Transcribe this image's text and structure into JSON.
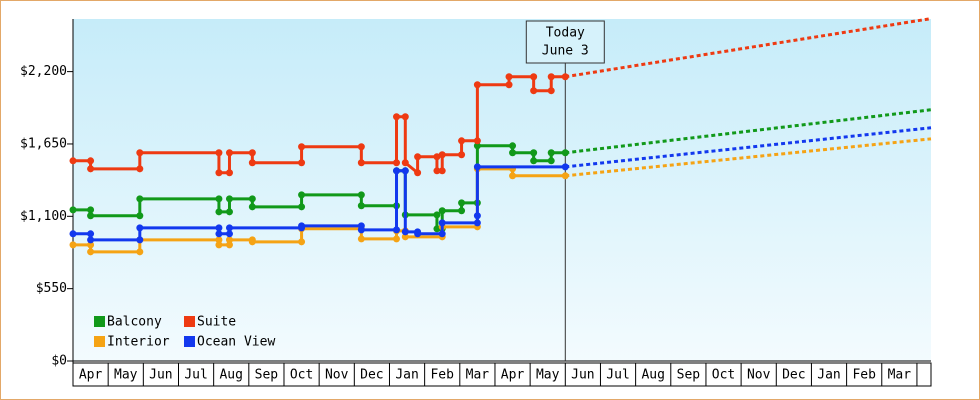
{
  "chart_data": {
    "type": "step-line",
    "xlim": [
      0,
      24.4
    ],
    "ylim": [
      0,
      2600
    ],
    "yticks": [
      {
        "value": 0,
        "label": "$0"
      },
      {
        "value": 550,
        "label": "$550"
      },
      {
        "value": 1100,
        "label": "$1,100"
      },
      {
        "value": 1650,
        "label": "$1,650"
      },
      {
        "value": 2200,
        "label": "$2,200"
      }
    ],
    "month_labels": [
      "Apr",
      "May",
      "Jun",
      "Jul",
      "Aug",
      "Sep",
      "Oct",
      "Nov",
      "Dec",
      "Jan",
      "Feb",
      "Mar",
      "Apr",
      "May",
      "Jun",
      "Jul",
      "Aug",
      "Sep",
      "Oct",
      "Nov",
      "Dec",
      "Jan",
      "Feb",
      "Mar"
    ],
    "today": {
      "x": 14,
      "label": [
        "Today",
        "June 3"
      ]
    },
    "forecast_x": [
      14,
      24.4
    ],
    "legend": "bottom-left",
    "series": [
      {
        "name": "Balcony",
        "color": "#11991a",
        "x": [
          0,
          0.5,
          0.5,
          1.9,
          1.9,
          4.15,
          4.15,
          4.45,
          4.45,
          5.1,
          5.1,
          6.5,
          6.5,
          8.2,
          8.2,
          9.2,
          9.2,
          9.45,
          9.45,
          10.35,
          10.35,
          10.5,
          10.5,
          11.05,
          11.05,
          11.5,
          11.5,
          12.5,
          12.5,
          13.1,
          13.1,
          13.6,
          13.6,
          14
        ],
        "values": [
          1149,
          1149,
          1104,
          1104,
          1233,
          1233,
          1134,
          1134,
          1233,
          1233,
          1172,
          1172,
          1263,
          1263,
          1180,
          1180,
          1446,
          1446,
          1111,
          1111,
          1005,
          1005,
          1142,
          1142,
          1202,
          1202,
          1636,
          1636,
          1583,
          1583,
          1522,
          1522,
          1583,
          1583
        ],
        "forecast_values": [
          1583,
          1910
        ]
      },
      {
        "name": "Suite",
        "color": "#ee3a12",
        "x": [
          0,
          0.5,
          0.5,
          1.9,
          1.9,
          4.15,
          4.15,
          4.45,
          4.45,
          5.1,
          5.1,
          6.5,
          6.5,
          8.2,
          8.2,
          9.2,
          9.2,
          9.45,
          9.45,
          9.8,
          9.8,
          10.35,
          10.35,
          10.5,
          10.5,
          11.05,
          11.05,
          11.5,
          11.5,
          12.4,
          12.4,
          13.1,
          13.1,
          13.6,
          13.6,
          14
        ],
        "values": [
          1522,
          1522,
          1461,
          1461,
          1583,
          1583,
          1431,
          1431,
          1583,
          1583,
          1507,
          1507,
          1629,
          1629,
          1507,
          1507,
          1857,
          1857,
          1507,
          1431,
          1553,
          1553,
          1446,
          1446,
          1568,
          1568,
          1674,
          1674,
          2100,
          2100,
          2161,
          2161,
          2055,
          2055,
          2161,
          2161
        ],
        "forecast_values": [
          2161,
          2603
        ]
      },
      {
        "name": "Interior",
        "color": "#f5a314",
        "x": [
          0,
          0.5,
          0.5,
          1.9,
          1.9,
          4.15,
          4.15,
          4.45,
          4.45,
          5.1,
          5.1,
          6.5,
          6.5,
          8.2,
          8.2,
          9.2,
          9.2,
          9.45,
          9.45,
          10.5,
          10.5,
          11.5,
          11.5,
          12.5,
          12.5,
          14
        ],
        "values": [
          883,
          883,
          830,
          830,
          921,
          921,
          883,
          883,
          921,
          921,
          906,
          906,
          1005,
          1005,
          928,
          928,
          989,
          989,
          944,
          944,
          1020,
          1020,
          1461,
          1461,
          1408,
          1408
        ],
        "forecast_values": [
          1408,
          1689
        ]
      },
      {
        "name": "Ocean View",
        "color": "#1238ee",
        "x": [
          0,
          0.5,
          0.5,
          1.9,
          1.9,
          4.15,
          4.15,
          4.45,
          4.45,
          6.5,
          6.5,
          8.2,
          8.2,
          9.2,
          9.2,
          9.45,
          9.45,
          9.8,
          9.8,
          10.5,
          10.5,
          11.5,
          11.5,
          11.5,
          14
        ],
        "values": [
          967,
          967,
          921,
          921,
          1012,
          1012,
          967,
          967,
          1012,
          1012,
          1027,
          1027,
          997,
          997,
          1446,
          1446,
          982,
          982,
          967,
          967,
          1050,
          1050,
          1104,
          1476,
          1476
        ],
        "forecast_values": [
          1476,
          1773
        ]
      }
    ]
  }
}
